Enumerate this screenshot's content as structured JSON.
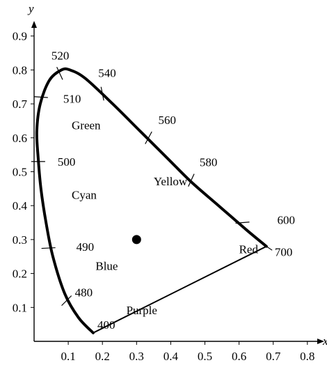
{
  "chart_data": {
    "type": "diagram",
    "title": "",
    "xlabel": "x",
    "ylabel": "y",
    "xlim": [
      0,
      0.85
    ],
    "ylim": [
      0,
      0.93
    ],
    "x_ticks": [
      "0.1",
      "0.2",
      "0.3",
      "0.4",
      "0.5",
      "0.6",
      "0.7",
      "0.8"
    ],
    "y_ticks": [
      "0.1",
      "0.2",
      "0.3",
      "0.4",
      "0.5",
      "0.6",
      "0.7",
      "0.8",
      "0.9"
    ],
    "spectral_locus": [
      [
        0.173,
        0.025
      ],
      [
        0.13,
        0.07
      ],
      [
        0.09,
        0.14
      ],
      [
        0.055,
        0.25
      ],
      [
        0.035,
        0.35
      ],
      [
        0.02,
        0.45
      ],
      [
        0.012,
        0.54
      ],
      [
        0.008,
        0.62
      ],
      [
        0.018,
        0.7
      ],
      [
        0.045,
        0.77
      ],
      [
        0.08,
        0.8
      ],
      [
        0.105,
        0.8
      ],
      [
        0.15,
        0.775
      ],
      [
        0.23,
        0.7
      ],
      [
        0.31,
        0.62
      ],
      [
        0.39,
        0.54
      ],
      [
        0.46,
        0.47
      ],
      [
        0.54,
        0.4
      ],
      [
        0.62,
        0.33
      ],
      [
        0.68,
        0.28
      ]
    ],
    "purple_line": [
      [
        0.68,
        0.28
      ],
      [
        0.173,
        0.025
      ]
    ],
    "wavelength_marks": [
      {
        "label": "400",
        "x": 0.173,
        "y": 0.025
      },
      {
        "label": "480",
        "x": 0.095,
        "y": 0.12
      },
      {
        "label": "490",
        "x": 0.042,
        "y": 0.275
      },
      {
        "label": "500",
        "x": 0.012,
        "y": 0.53
      },
      {
        "label": "510",
        "x": 0.02,
        "y": 0.72
      },
      {
        "label": "520",
        "x": 0.075,
        "y": 0.79
      },
      {
        "label": "540",
        "x": 0.2,
        "y": 0.73
      },
      {
        "label": "560",
        "x": 0.335,
        "y": 0.6
      },
      {
        "label": "580",
        "x": 0.46,
        "y": 0.475
      },
      {
        "label": "600",
        "x": 0.61,
        "y": 0.35
      },
      {
        "label": "700",
        "x": 0.68,
        "y": 0.28
      }
    ],
    "white_point": {
      "x": 0.3,
      "y": 0.3
    },
    "regions": [
      {
        "label": "Green",
        "x": 0.11,
        "y": 0.625
      },
      {
        "label": "Cyan",
        "x": 0.11,
        "y": 0.42
      },
      {
        "label": "Yellow",
        "x": 0.35,
        "y": 0.46
      },
      {
        "label": "Blue",
        "x": 0.18,
        "y": 0.21
      },
      {
        "label": "Red",
        "x": 0.6,
        "y": 0.26
      },
      {
        "label": "Purple",
        "x": 0.27,
        "y": 0.08
      }
    ]
  }
}
